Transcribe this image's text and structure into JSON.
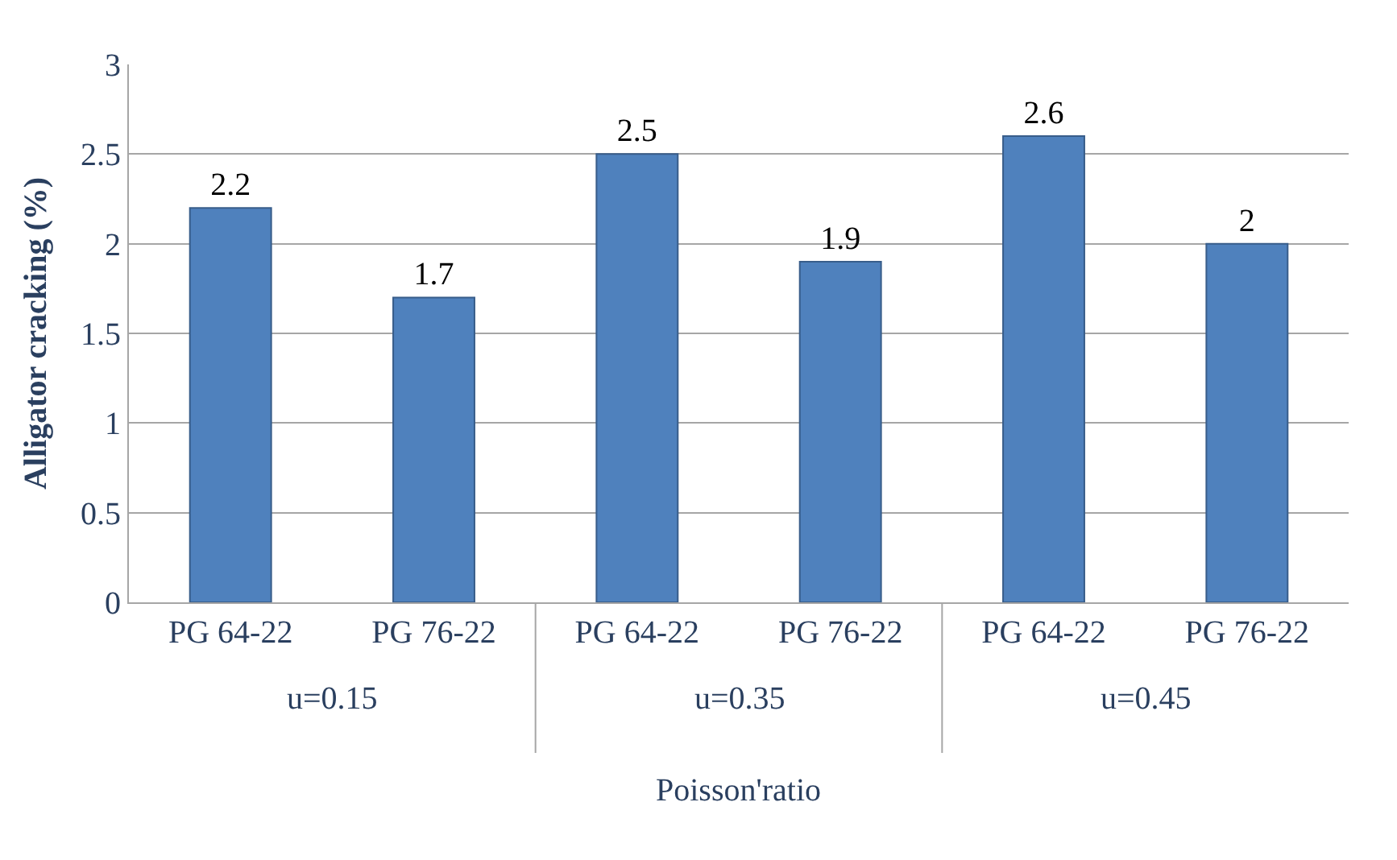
{
  "chart_data": {
    "type": "bar",
    "ylabel": "Alligator cracking (%)",
    "xlabel": "Poisson'ratio",
    "categories": [
      "PG 64-22",
      "PG 76-22",
      "PG 64-22",
      "PG 76-22",
      "PG 64-22",
      "PG 76-22"
    ],
    "values": [
      2.2,
      1.7,
      2.5,
      1.9,
      2.6,
      2
    ],
    "color": "#4f81bd",
    "ylim": [
      0,
      3
    ],
    "yticks": [
      0,
      0.5,
      1,
      1.5,
      2,
      2.5,
      3
    ],
    "grid": "y",
    "data_labels": true,
    "annotations": [
      "u=0.15",
      "u=0.35",
      "u=0.45"
    ]
  }
}
